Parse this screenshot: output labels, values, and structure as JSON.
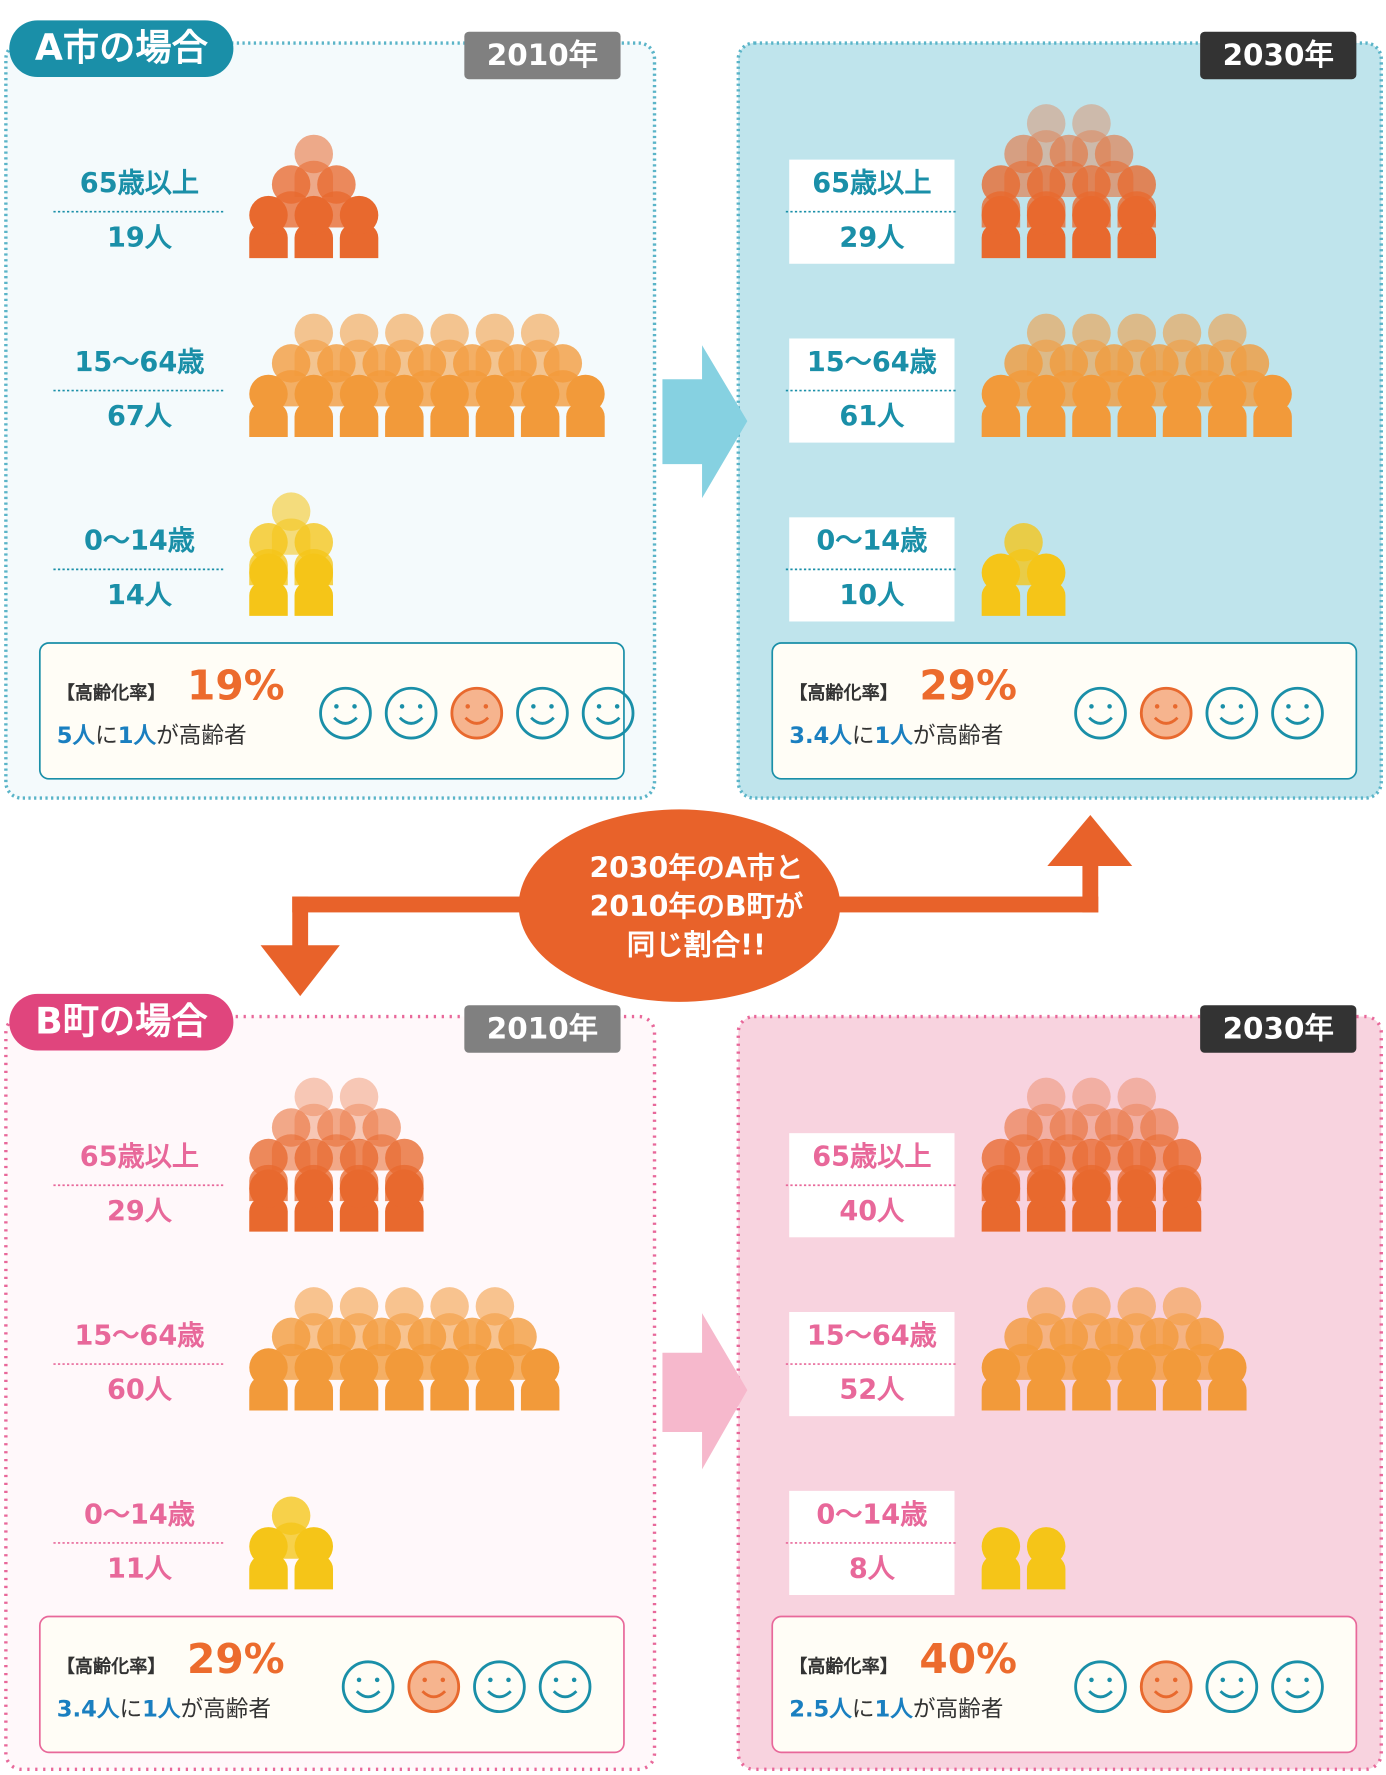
{
  "cities": [
    {
      "name": "A市の場合",
      "panels": [
        {
          "year": "2010年",
          "groups": [
            {
              "label": "65歳以上",
              "count": "19人"
            },
            {
              "label": "15〜64歳",
              "count": "67人"
            },
            {
              "label": "0〜14歳",
              "count": "14人"
            }
          ],
          "rate_label": "【高齢化率】",
          "rate": "19%",
          "ratio": [
            "5人",
            "に",
            "1人",
            "が高齢者"
          ]
        },
        {
          "year": "2030年",
          "groups": [
            {
              "label": "65歳以上",
              "count": "29人"
            },
            {
              "label": "15〜64歳",
              "count": "61人"
            },
            {
              "label": "0〜14歳",
              "count": "10人"
            }
          ],
          "rate_label": "【高齢化率】",
          "rate": "29%",
          "ratio": [
            "3.4人",
            "に",
            "1人",
            "が高齢者"
          ]
        }
      ]
    },
    {
      "name": "B町の場合",
      "panels": [
        {
          "year": "2010年",
          "groups": [
            {
              "label": "65歳以上",
              "count": "29人"
            },
            {
              "label": "15〜64歳",
              "count": "60人"
            },
            {
              "label": "0〜14歳",
              "count": "11人"
            }
          ],
          "rate_label": "【高齢化率】",
          "rate": "29%",
          "ratio": [
            "3.4人",
            "に",
            "1人",
            "が高齢者"
          ]
        },
        {
          "year": "2030年",
          "groups": [
            {
              "label": "65歳以上",
              "count": "40人"
            },
            {
              "label": "15〜64歳",
              "count": "52人"
            },
            {
              "label": "0〜14歳",
              "count": "8人"
            }
          ],
          "rate_label": "【高齢化率】",
          "rate": "40%",
          "ratio": [
            "2.5人",
            "に",
            "1人",
            "が高齢者"
          ]
        }
      ]
    }
  ],
  "callout": [
    "2030年のA市と",
    "2010年のB町が",
    "同じ割合!!"
  ]
}
